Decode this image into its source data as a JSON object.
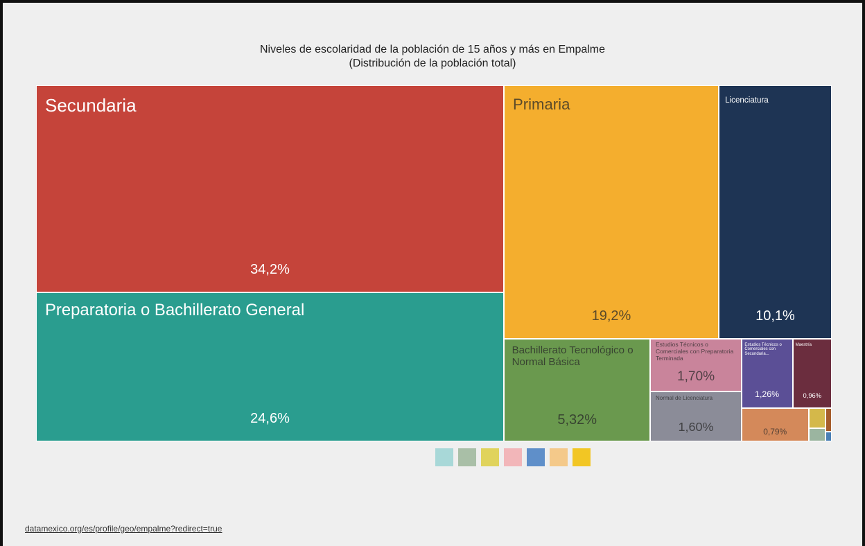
{
  "chart_data": {
    "type": "treemap",
    "title": "Niveles de escolaridad de la población de 15 años y más en Empalme",
    "subtitle": "(Distribución de la población total)",
    "categories": [
      "Secundaria",
      "Preparatoria o Bachillerato General",
      "Primaria",
      "Licenciatura",
      "Bachillerato Tecnológico o Normal Básica",
      "Estudios Técnicos o Comerciales con Preparatoria Terminada",
      "Normal de Licenciatura",
      "Estudios Técnicos o Comerciales con Secundaria...",
      "Maestría",
      null,
      null,
      null,
      null,
      null
    ],
    "values": [
      34.2,
      24.6,
      19.2,
      10.1,
      5.32,
      1.7,
      1.6,
      1.26,
      0.96,
      0.79,
      0.12,
      0.08,
      0.05,
      0.02
    ],
    "value_labels": [
      "34,2%",
      "24,6%",
      "19,2%",
      "10,1%",
      "5,32%",
      "1,70%",
      "1,60%",
      "1,26%",
      "0,96%",
      "0,79%",
      null,
      null,
      null,
      null
    ],
    "colors": [
      "#c5443a",
      "#2a9d8f",
      "#f4ae2e",
      "#1e3454",
      "#6a994e",
      "#c9849b",
      "#8b8c98",
      "#5b4f96",
      "#6b2d3e",
      "#d4895a",
      "#d4b84a",
      "#9bb5a0",
      "#a55c2a",
      "#4a7fb5"
    ]
  },
  "source": "datamexico.org/es/profile/geo/empalme?redirect=true"
}
